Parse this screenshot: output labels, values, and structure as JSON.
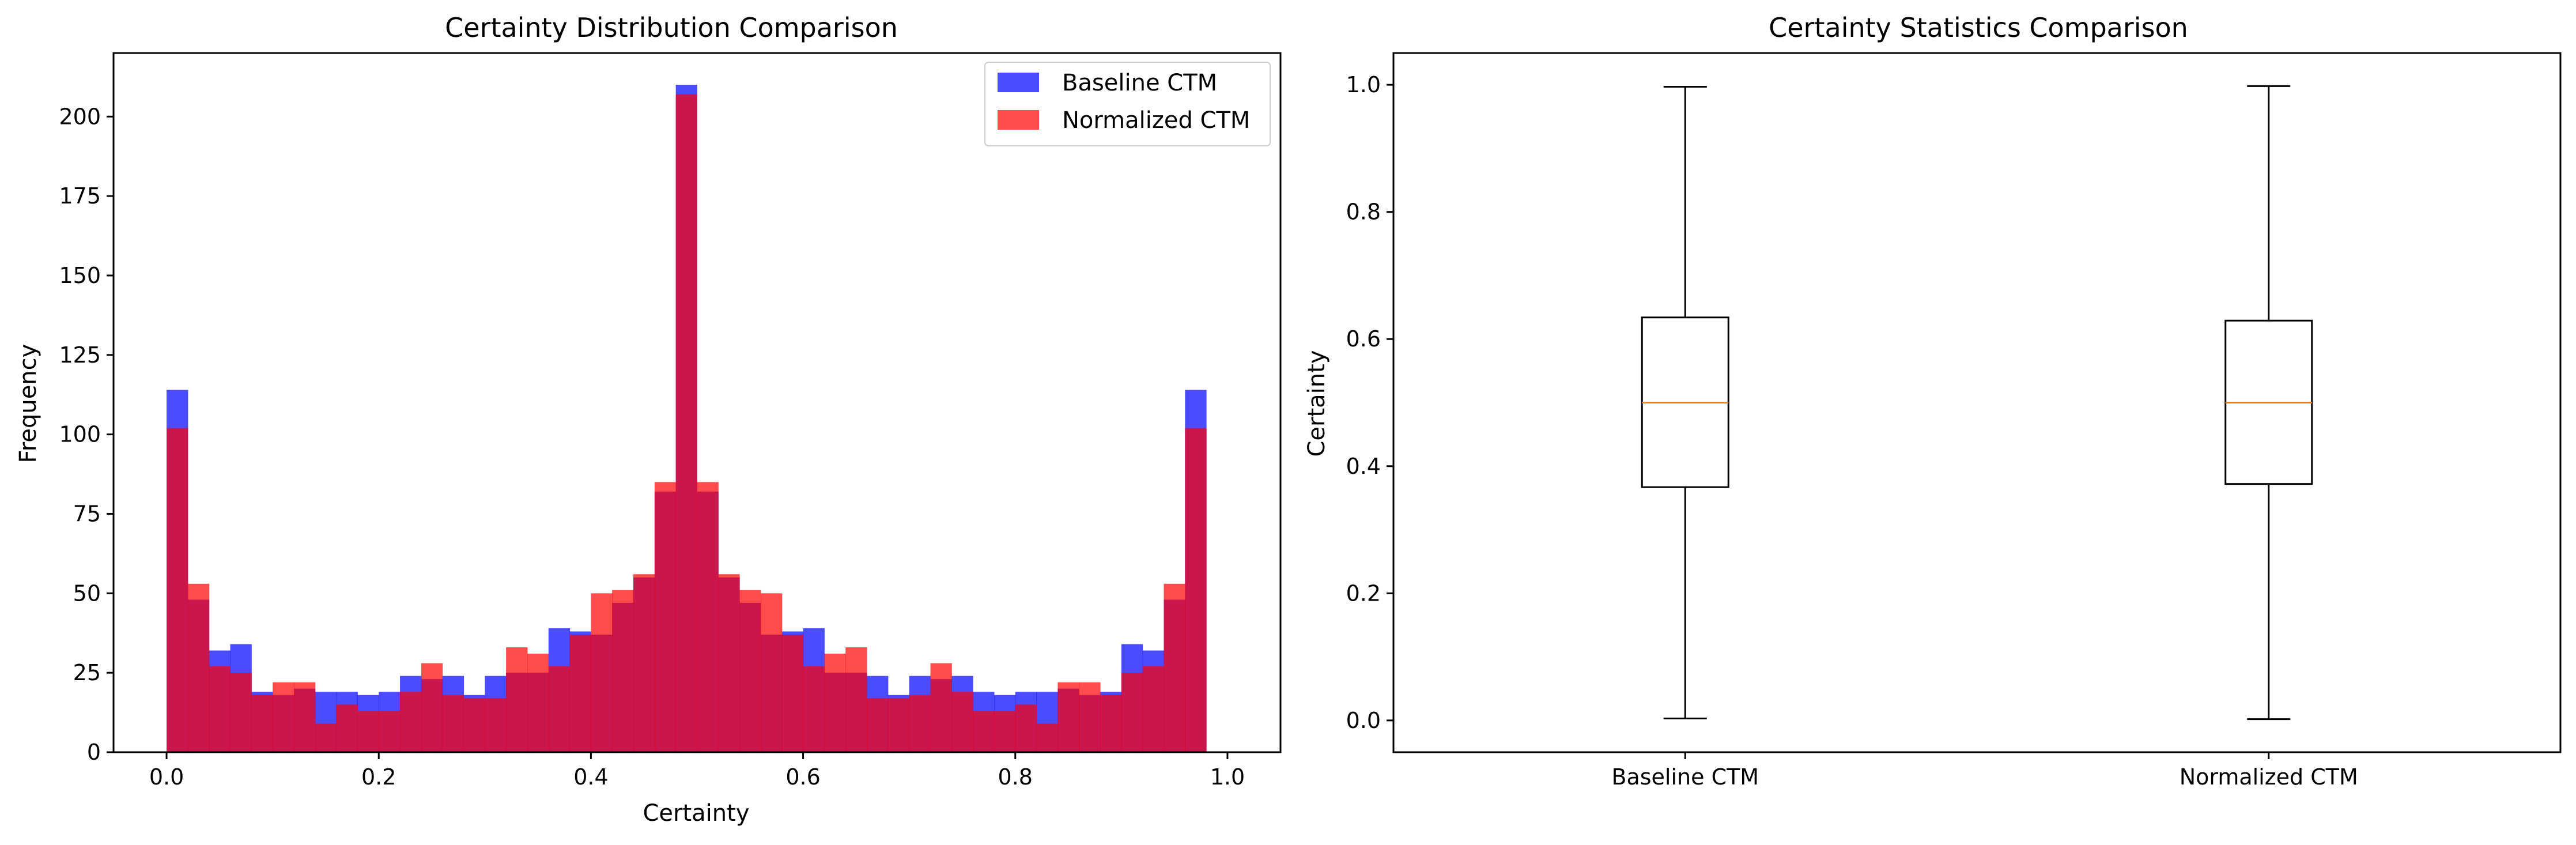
{
  "chart_data": [
    {
      "type": "histogram",
      "title": "Certainty Distribution Comparison",
      "xlabel": "Certainty",
      "ylabel": "Frequency",
      "xlim": [
        -0.05,
        1.05
      ],
      "ylim": [
        0,
        220
      ],
      "xticks": [
        "0.0",
        "0.2",
        "0.4",
        "0.6",
        "0.8",
        "1.0"
      ],
      "yticks": [
        "0",
        "25",
        "50",
        "75",
        "100",
        "125",
        "150",
        "175",
        "200"
      ],
      "legend_position": "top-right",
      "bin_edges": [
        0.0,
        1.0
      ],
      "bin_count": 50,
      "series": [
        {
          "name": "Baseline CTM",
          "color": "#0000ff",
          "alpha": 0.7,
          "values": [
            114,
            48,
            32,
            34,
            19,
            18,
            20,
            19,
            19,
            18,
            19,
            24,
            23,
            24,
            18,
            24,
            25,
            25,
            39,
            38,
            37,
            47,
            55,
            82,
            210,
            82,
            55,
            47,
            37,
            38,
            39,
            25,
            25,
            24,
            18,
            24,
            23,
            24,
            19,
            18,
            19,
            19,
            20,
            18,
            19,
            34,
            32,
            48,
            114,
            0
          ]
        },
        {
          "name": "Normalized CTM",
          "color": "#ff0000",
          "alpha": 0.7,
          "values": [
            102,
            53,
            27,
            25,
            18,
            22,
            22,
            9,
            15,
            13,
            13,
            19,
            28,
            18,
            17,
            17,
            33,
            31,
            27,
            37,
            50,
            51,
            56,
            85,
            207,
            85,
            56,
            51,
            50,
            37,
            27,
            31,
            33,
            17,
            17,
            18,
            28,
            19,
            13,
            13,
            15,
            9,
            22,
            22,
            18,
            25,
            27,
            53,
            102,
            0
          ]
        }
      ]
    },
    {
      "type": "box",
      "title": "Certainty Statistics Comparison",
      "xlabel": "",
      "ylabel": "Certainty",
      "ylim": [
        -0.05,
        1.05
      ],
      "yticks": [
        "0.0",
        "0.2",
        "0.4",
        "0.6",
        "0.8",
        "1.0"
      ],
      "categories": [
        "Baseline CTM",
        "Normalized CTM"
      ],
      "boxes": [
        {
          "name": "Baseline CTM",
          "min": 0.003,
          "q1": 0.367,
          "median": 0.5,
          "q3": 0.634,
          "max": 0.997
        },
        {
          "name": "Normalized CTM",
          "min": 0.002,
          "q1": 0.372,
          "median": 0.5,
          "q3": 0.629,
          "max": 0.998
        }
      ],
      "median_color": "#ff7f0e"
    }
  ]
}
